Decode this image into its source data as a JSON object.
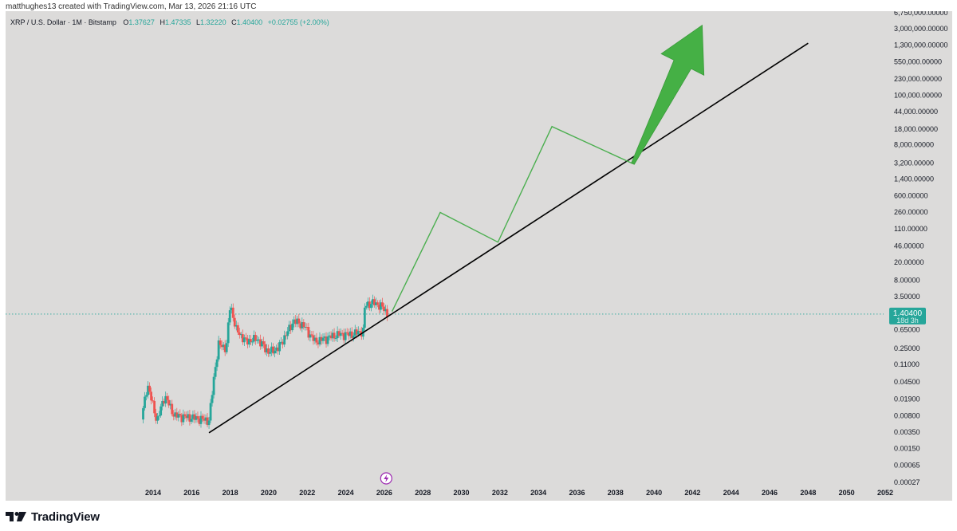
{
  "header": {
    "credit": "matthughes13 created with TradingView.com, Mar 13, 2026 21:16 UTC"
  },
  "legend": {
    "symbol": "XRP / U.S. Dollar · 1M · Bitstamp",
    "open_label": "O",
    "open": "1.37627",
    "high_label": "H",
    "high": "1.47335",
    "low_label": "L",
    "low": "1.32220",
    "close_label": "C",
    "close": "1.40400",
    "change": "+0.02755 (+2.00%)"
  },
  "price_tag": {
    "value": "1.40400",
    "countdown": "18d 3h"
  },
  "footer": {
    "brand": "TradingView"
  },
  "colors": {
    "chart_bg": "#dcdbda",
    "up": "#26a69a",
    "down": "#ef5350",
    "trendline": "#000000",
    "projection": "#4caf50",
    "arrow": "#45b045",
    "price_line": "#26a69a",
    "axis_text": "#131722",
    "tv_logo": "#131722",
    "event_icon": "#9c27b0"
  },
  "icons": {
    "event": "lightning-icon",
    "brand": "tradingview-logo-icon"
  },
  "chart_data": {
    "type": "candlestick",
    "y_scale": "log",
    "y_ticks": [
      "0.00027",
      "0.00065",
      "0.00150",
      "0.00350",
      "0.00800",
      "0.01900",
      "0.04500",
      "0.11000",
      "0.25000",
      "0.65000",
      "3.50000",
      "8.00000",
      "20.00000",
      "46.00000",
      "110.00000",
      "260.00000",
      "600.00000",
      "1,400.00000",
      "3,200.00000",
      "8,000.00000",
      "18,000.00000",
      "44,000.00000",
      "100,000.00000",
      "230,000.00000",
      "550,000.00000",
      "1,300,000.00000",
      "3,000,000.00000",
      "6,750,000.00000"
    ],
    "x_ticks": [
      "2014",
      "2016",
      "2018",
      "2020",
      "2022",
      "2024",
      "2026",
      "2028",
      "2030",
      "2032",
      "2034",
      "2036",
      "2038",
      "2040",
      "2042",
      "2044",
      "2046",
      "2048",
      "2050",
      "2052"
    ],
    "price_path": [
      {
        "x": 2013.4,
        "y": 0.0065
      },
      {
        "x": 2013.7,
        "y": 0.04
      },
      {
        "x": 2014.2,
        "y": 0.006
      },
      {
        "x": 2014.6,
        "y": 0.022
      },
      {
        "x": 2015.1,
        "y": 0.008
      },
      {
        "x": 2015.6,
        "y": 0.0075
      },
      {
        "x": 2016.2,
        "y": 0.007
      },
      {
        "x": 2016.6,
        "y": 0.0065
      },
      {
        "x": 2016.9,
        "y": 0.0062
      },
      {
        "x": 2017.2,
        "y": 0.08
      },
      {
        "x": 2017.4,
        "y": 0.3
      },
      {
        "x": 2017.8,
        "y": 0.25
      },
      {
        "x": 2018.0,
        "y": 2.4
      },
      {
        "x": 2018.3,
        "y": 0.65
      },
      {
        "x": 2018.8,
        "y": 0.35
      },
      {
        "x": 2019.4,
        "y": 0.4
      },
      {
        "x": 2020.0,
        "y": 0.2
      },
      {
        "x": 2020.5,
        "y": 0.25
      },
      {
        "x": 2020.9,
        "y": 0.5
      },
      {
        "x": 2021.3,
        "y": 1.0
      },
      {
        "x": 2021.8,
        "y": 0.8
      },
      {
        "x": 2022.4,
        "y": 0.35
      },
      {
        "x": 2022.9,
        "y": 0.4
      },
      {
        "x": 2023.6,
        "y": 0.5
      },
      {
        "x": 2024.3,
        "y": 0.5
      },
      {
        "x": 2024.9,
        "y": 0.6
      },
      {
        "x": 2025.0,
        "y": 2.3
      },
      {
        "x": 2025.5,
        "y": 2.5
      },
      {
        "x": 2025.9,
        "y": 2.0
      },
      {
        "x": 2026.2,
        "y": 1.4
      }
    ],
    "trendline": {
      "start": {
        "x": 2016.9,
        "y": 0.0033
      },
      "end": {
        "x": 2048.0,
        "y": 1400000
      }
    },
    "projection_path": [
      {
        "x": 2026.4,
        "y": 1.6
      },
      {
        "x": 2028.9,
        "y": 250
      },
      {
        "x": 2031.9,
        "y": 55
      },
      {
        "x": 2034.7,
        "y": 20000
      },
      {
        "x": 2038.9,
        "y": 3000
      }
    ],
    "arrow": {
      "from": {
        "x": 2038.9,
        "y": 3000
      },
      "to": {
        "x": 2042.5,
        "y": 3500000
      }
    },
    "last_price": 1.404
  }
}
